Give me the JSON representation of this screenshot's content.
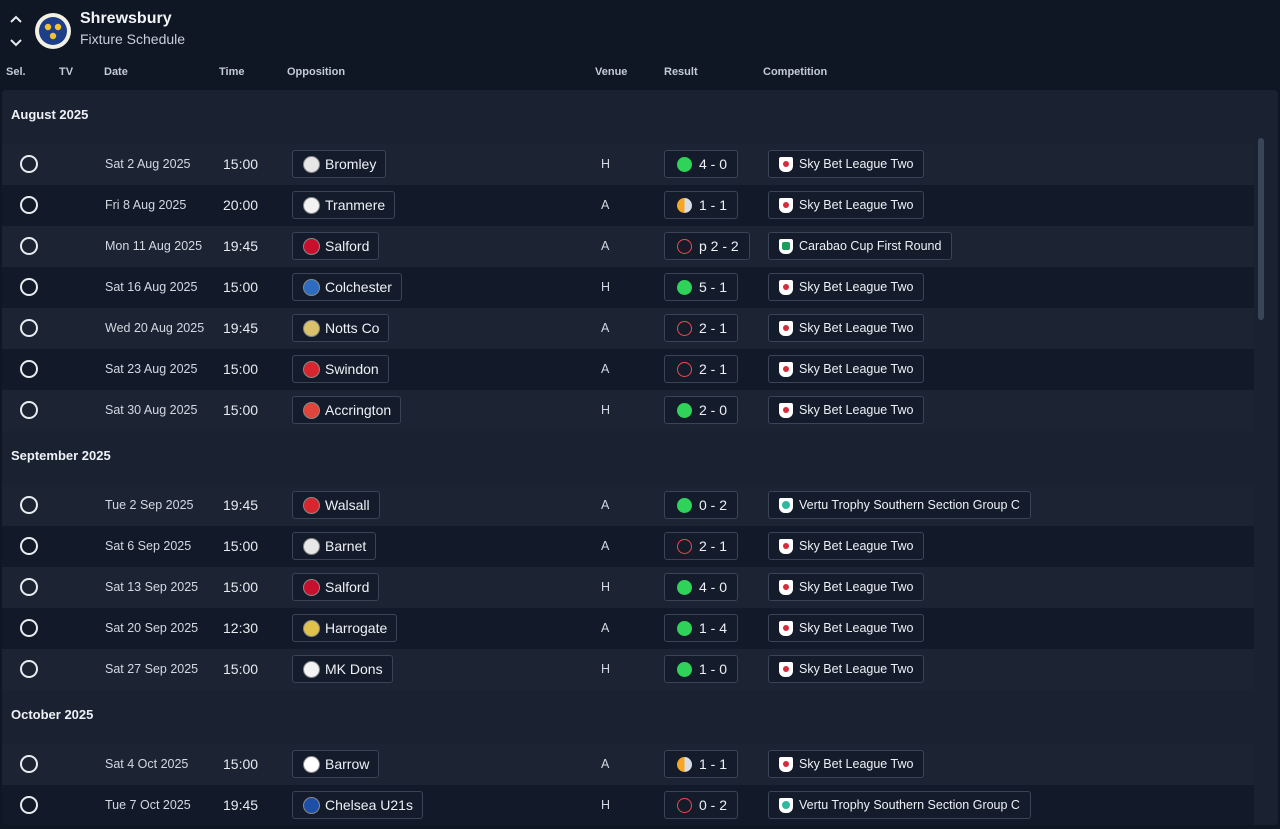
{
  "header": {
    "club_name": "Shrewsbury",
    "subtitle": "Fixture Schedule"
  },
  "columns": {
    "sel": "Sel.",
    "tv": "TV",
    "date": "Date",
    "time": "Time",
    "opposition": "Opposition",
    "venue": "Venue",
    "result": "Result",
    "competition": "Competition"
  },
  "colors": {
    "win": "#2fd35a",
    "loss": "#ef4a4a",
    "draw": "#f5a623",
    "background": "#0f1624",
    "panel": "#1a2232"
  },
  "months": [
    {
      "label": "August 2025",
      "fixtures": [
        {
          "date": "Sat 2 Aug 2025",
          "time": "15:00",
          "opponent": "Bromley",
          "badge_color": "#e6e6e6",
          "venue": "H",
          "outcome": "win",
          "score": "4 - 0",
          "competition": "Sky Bet League Two",
          "comp_icon": "league"
        },
        {
          "date": "Fri 8 Aug 2025",
          "time": "20:00",
          "opponent": "Tranmere",
          "badge_color": "#f2f2f2",
          "venue": "A",
          "outcome": "draw",
          "score": "1 - 1",
          "competition": "Sky Bet League Two",
          "comp_icon": "league"
        },
        {
          "date": "Mon 11 Aug 2025",
          "time": "19:45",
          "opponent": "Salford",
          "badge_color": "#c8102e",
          "venue": "A",
          "outcome": "loss",
          "score": "p 2 - 2",
          "competition": "Carabao Cup First Round",
          "comp_icon": "cup"
        },
        {
          "date": "Sat 16 Aug 2025",
          "time": "15:00",
          "opponent": "Colchester",
          "badge_color": "#2d6cc0",
          "venue": "H",
          "outcome": "win",
          "score": "5 - 1",
          "competition": "Sky Bet League Two",
          "comp_icon": "league"
        },
        {
          "date": "Wed 20 Aug 2025",
          "time": "19:45",
          "opponent": "Notts Co",
          "badge_color": "#d9c26a",
          "venue": "A",
          "outcome": "loss",
          "score": "2 - 1",
          "competition": "Sky Bet League Two",
          "comp_icon": "league"
        },
        {
          "date": "Sat 23 Aug 2025",
          "time": "15:00",
          "opponent": "Swindon",
          "badge_color": "#d8262f",
          "venue": "A",
          "outcome": "loss",
          "score": "2 - 1",
          "competition": "Sky Bet League Two",
          "comp_icon": "league"
        },
        {
          "date": "Sat 30 Aug 2025",
          "time": "15:00",
          "opponent": "Accrington",
          "badge_color": "#e0443a",
          "venue": "H",
          "outcome": "win",
          "score": "2 - 0",
          "competition": "Sky Bet League Two",
          "comp_icon": "league"
        }
      ]
    },
    {
      "label": "September 2025",
      "fixtures": [
        {
          "date": "Tue 2 Sep 2025",
          "time": "19:45",
          "opponent": "Walsall",
          "badge_color": "#d8262f",
          "venue": "A",
          "outcome": "win",
          "score": "0 - 2",
          "competition": "Vertu Trophy Southern Section Group C",
          "comp_icon": "trophy"
        },
        {
          "date": "Sat 6 Sep 2025",
          "time": "15:00",
          "opponent": "Barnet",
          "badge_color": "#e8e8e8",
          "venue": "A",
          "outcome": "loss",
          "score": "2 - 1",
          "competition": "Sky Bet League Two",
          "comp_icon": "league"
        },
        {
          "date": "Sat 13 Sep 2025",
          "time": "15:00",
          "opponent": "Salford",
          "badge_color": "#c8102e",
          "venue": "H",
          "outcome": "win",
          "score": "4 - 0",
          "competition": "Sky Bet League Two",
          "comp_icon": "league"
        },
        {
          "date": "Sat 20 Sep 2025",
          "time": "12:30",
          "opponent": "Harrogate",
          "badge_color": "#e0c24a",
          "venue": "A",
          "outcome": "win",
          "score": "1 - 4",
          "competition": "Sky Bet League Two",
          "comp_icon": "league"
        },
        {
          "date": "Sat 27 Sep 2025",
          "time": "15:00",
          "opponent": "MK Dons",
          "badge_color": "#f4f4f4",
          "venue": "H",
          "outcome": "win",
          "score": "1 - 0",
          "competition": "Sky Bet League Two",
          "comp_icon": "league"
        }
      ]
    },
    {
      "label": "October 2025",
      "fixtures": [
        {
          "date": "Sat 4 Oct 2025",
          "time": "15:00",
          "opponent": "Barrow",
          "badge_color": "#ffffff",
          "venue": "A",
          "outcome": "draw",
          "score": "1 - 1",
          "competition": "Sky Bet League Two",
          "comp_icon": "league"
        },
        {
          "date": "Tue 7 Oct 2025",
          "time": "19:45",
          "opponent": "Chelsea U21s",
          "badge_color": "#1e4fa8",
          "venue": "H",
          "outcome": "loss",
          "score": "0 - 2",
          "competition": "Vertu Trophy Southern Section Group C",
          "comp_icon": "trophy"
        }
      ]
    }
  ]
}
